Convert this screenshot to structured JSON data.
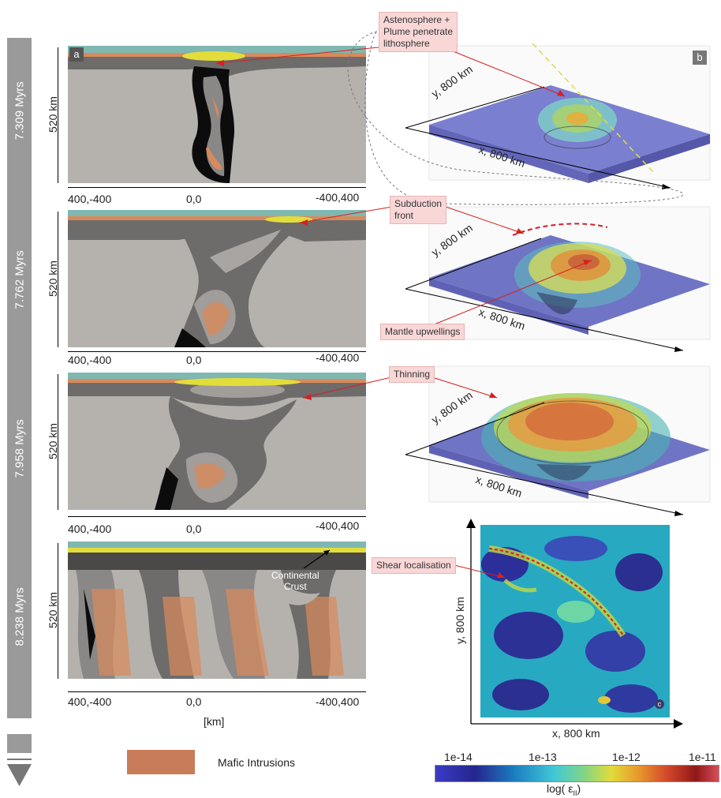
{
  "timeline": [
    "7.309 Myrs",
    "7.762 Myrs",
    "7.958 Myrs",
    "8.238 Myrs"
  ],
  "cross_sections": {
    "depth_label": "520 km",
    "x_left": "400,-400",
    "x_mid": "0,0",
    "x_right": "-400,400",
    "x_unit": "[km]",
    "tag_a": "a"
  },
  "maps_3d": {
    "tag_b": "b",
    "y_axis": "y, 800 km",
    "x_axis": "x, 800 km"
  },
  "callouts": {
    "plume": [
      "Astenosphere +",
      "Plume penetrate",
      "lithosphere"
    ],
    "subduction": [
      "Subduction",
      "front"
    ],
    "upwellings": "Mantle upwellings",
    "thinning": "Thinning",
    "continental": [
      "Continental",
      "Crust"
    ],
    "shear": "Shear localisation"
  },
  "strain_map": {
    "tag_c": "c",
    "y_axis": "y, 800 km",
    "x_axis": "x, 800 km"
  },
  "colorbar": {
    "ticks": [
      "1e-14",
      "1e-13",
      "1e-12",
      "1e-11"
    ],
    "label": "log( ε",
    "label_sub": "II",
    "label_end": ")"
  },
  "legend": {
    "label": "Mafic Intrusions",
    "color": "#c97c5a"
  },
  "colors": {
    "mantle": "#b5b2ae",
    "lithosphere": "#6e6b6b",
    "crust_orange": "#d88a5a",
    "teal": "#7fb8b0",
    "yellow": "#e3dd3a",
    "slab": "#0c0c0c",
    "plate": "#7476c9"
  }
}
